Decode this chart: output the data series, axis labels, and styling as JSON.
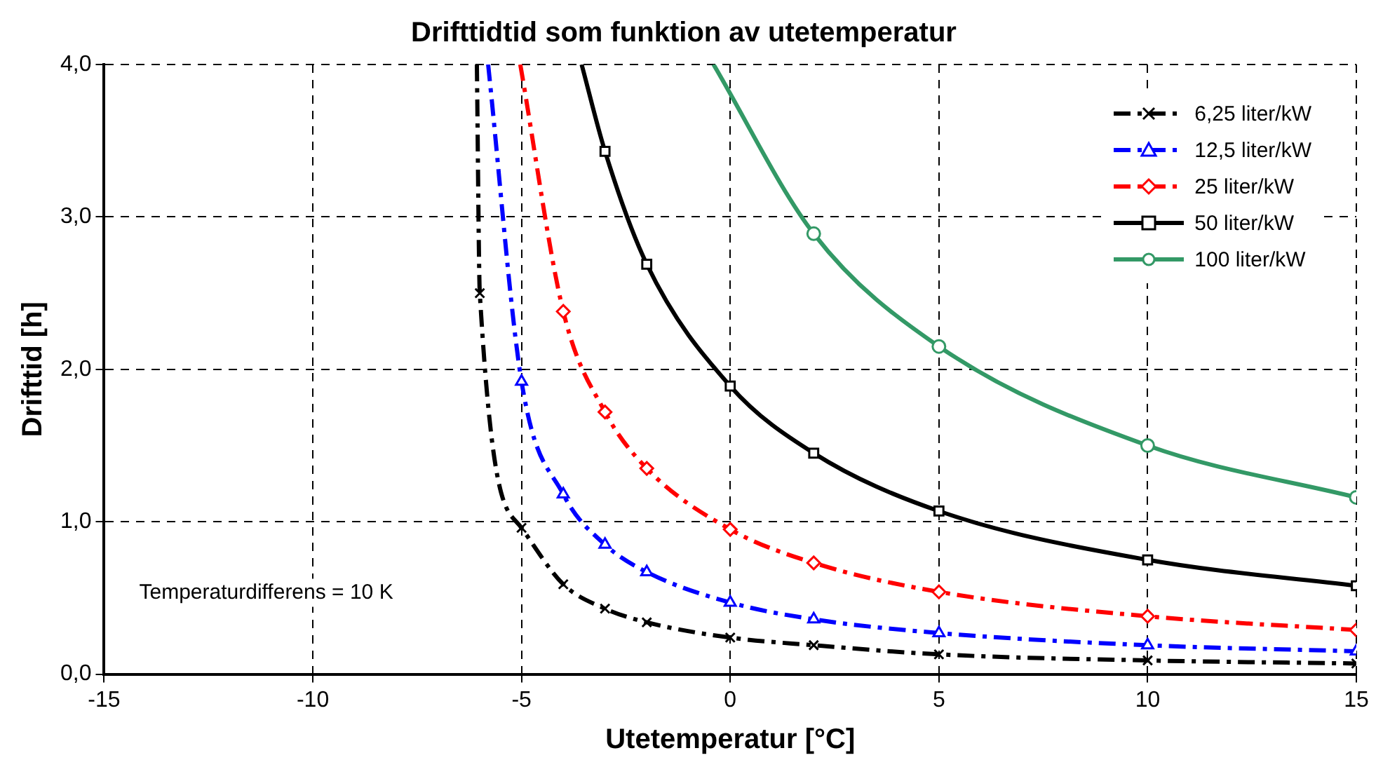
{
  "chart_data": {
    "type": "line",
    "title": "Drifttidtid som funktion av utetemperatur",
    "xlabel": "Utetemperatur [°C]",
    "ylabel": "Drifttid [h]",
    "annotations": [
      "Temperaturdifferens = 10 K"
    ],
    "xlim": [
      -15,
      15
    ],
    "xticks": [
      -15,
      -10,
      -5,
      0,
      5,
      10,
      15
    ],
    "ylim": [
      0,
      4
    ],
    "yticks": [
      {
        "value": 0,
        "label": "0,0"
      },
      {
        "value": 1,
        "label": "1,0"
      },
      {
        "value": 2,
        "label": "2,0"
      },
      {
        "value": 3,
        "label": "3,0"
      },
      {
        "value": 4,
        "label": "4,0"
      }
    ],
    "grid": true,
    "legend": "top right",
    "series": [
      {
        "name": "6,25 liter/kW",
        "color": "#000000",
        "marker": "cross",
        "line_style": "dashed",
        "x": [
          -6.07,
          -6,
          -5,
          -4,
          -3,
          -2,
          0,
          2,
          5,
          10,
          15
        ],
        "values": [
          4.0,
          2.5,
          0.96,
          0.59,
          0.43,
          0.34,
          0.24,
          0.19,
          0.13,
          0.09,
          0.07
        ]
      },
      {
        "name": "12,5 liter/kW",
        "color": "#0000ff",
        "marker": "triangle",
        "line_style": "dashed",
        "x": [
          -5.8,
          -5,
          -4,
          -3,
          -2,
          0,
          2,
          5,
          10,
          15
        ],
        "values": [
          4.0,
          1.92,
          1.18,
          0.85,
          0.67,
          0.47,
          0.36,
          0.27,
          0.19,
          0.15
        ]
      },
      {
        "name": "25 liter/kW",
        "color": "#ff0000",
        "marker": "diamond",
        "line_style": "dashed",
        "x": [
          -5.03,
          -4,
          -3,
          -2,
          0,
          2,
          5,
          10,
          15
        ],
        "values": [
          4.0,
          2.38,
          1.72,
          1.35,
          0.95,
          0.73,
          0.54,
          0.38,
          0.29
        ]
      },
      {
        "name": "50 liter/kW",
        "color": "#000000",
        "marker": "square",
        "line_style": "solid",
        "x": [
          -3.56,
          -3,
          -2,
          0,
          2,
          5,
          10,
          15
        ],
        "values": [
          4.0,
          3.43,
          2.69,
          1.89,
          1.45,
          1.07,
          0.75,
          0.58
        ]
      },
      {
        "name": "100 liter/kW",
        "color": "#339966",
        "marker": "circle",
        "line_style": "solid",
        "x": [
          -0.4,
          2,
          5,
          10,
          15
        ],
        "values": [
          4.0,
          2.89,
          2.15,
          1.5,
          1.16
        ]
      }
    ]
  }
}
